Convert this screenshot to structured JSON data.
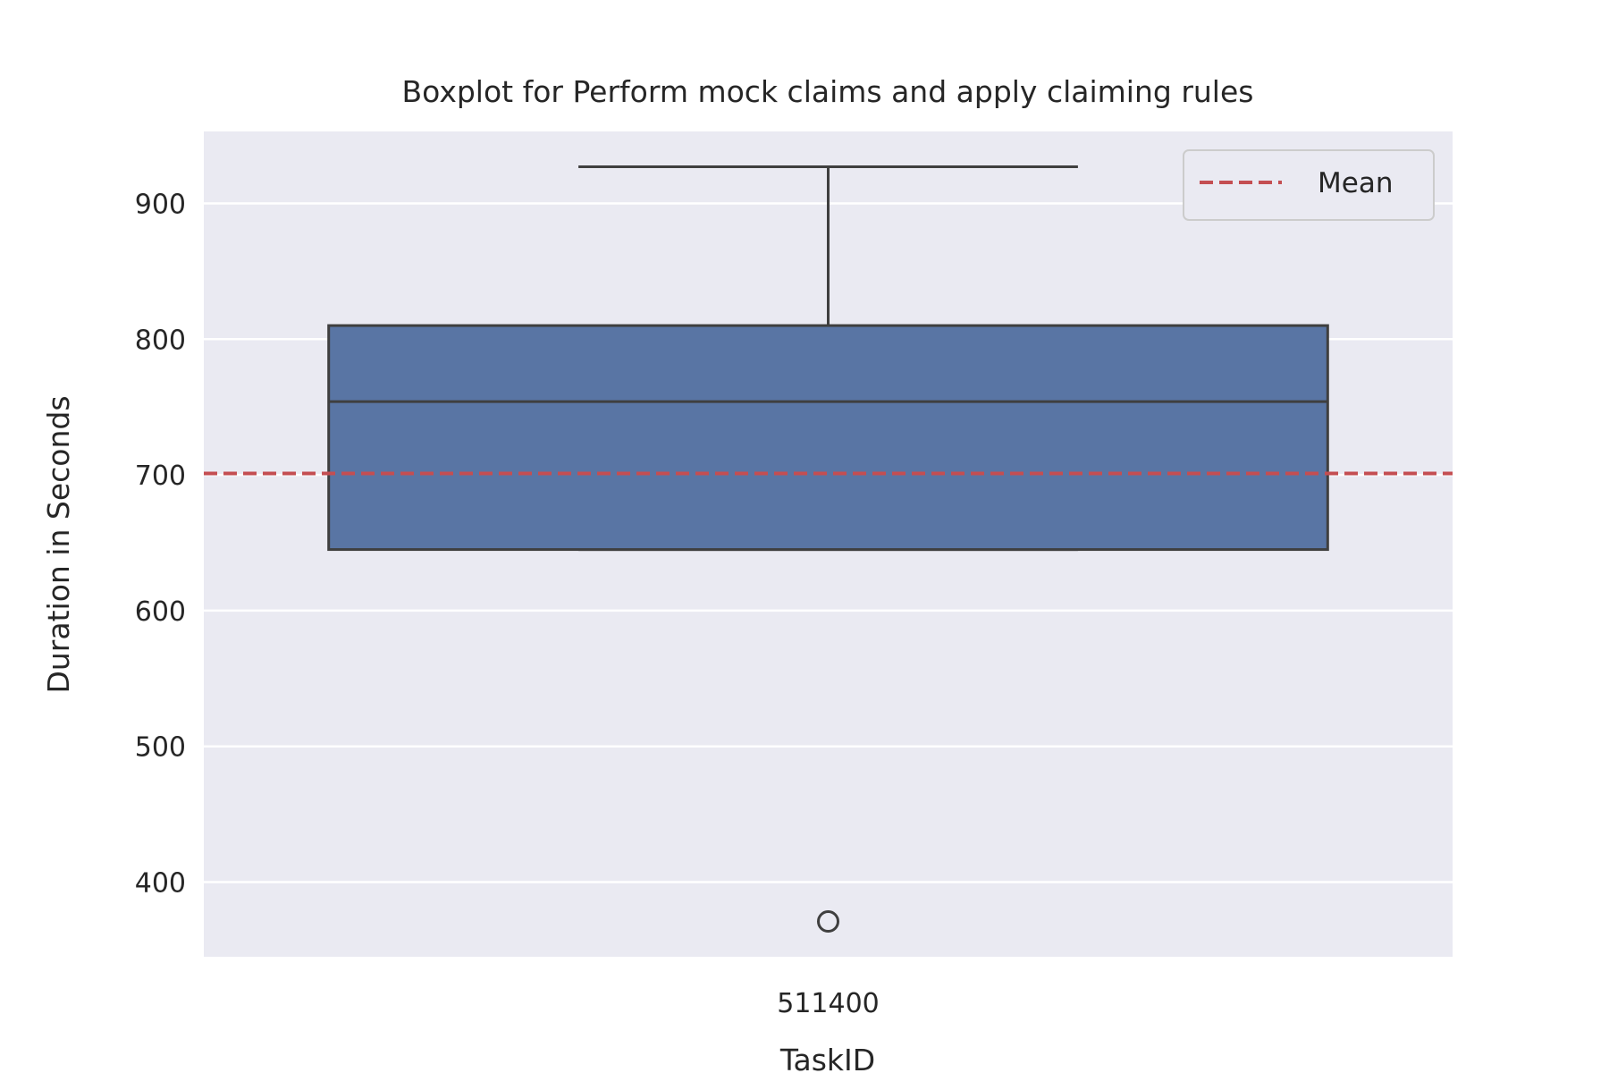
{
  "chart_data": {
    "type": "box",
    "title": "Boxplot for Perform mock claims and apply claiming rules",
    "xlabel": "TaskID",
    "ylabel": "Duration in Seconds",
    "categories": [
      "511400"
    ],
    "boxes": [
      {
        "category": "511400",
        "whisker_low": 645,
        "q1": 645,
        "median": 754,
        "q3": 810,
        "whisker_high": 927,
        "outliers": [
          371
        ]
      }
    ],
    "mean": 701,
    "yticks": [
      400,
      500,
      600,
      700,
      800,
      900
    ],
    "ylim": [
      345,
      953
    ],
    "grid": true,
    "legend": {
      "position": "top-right",
      "entries": [
        "Mean"
      ]
    },
    "colors": {
      "box_fill": "#5975a4",
      "box_edge": "#3f3f3f",
      "mean_line": "#c44e52",
      "plot_background": "#eaeaf2",
      "grid": "#ffffff"
    }
  }
}
